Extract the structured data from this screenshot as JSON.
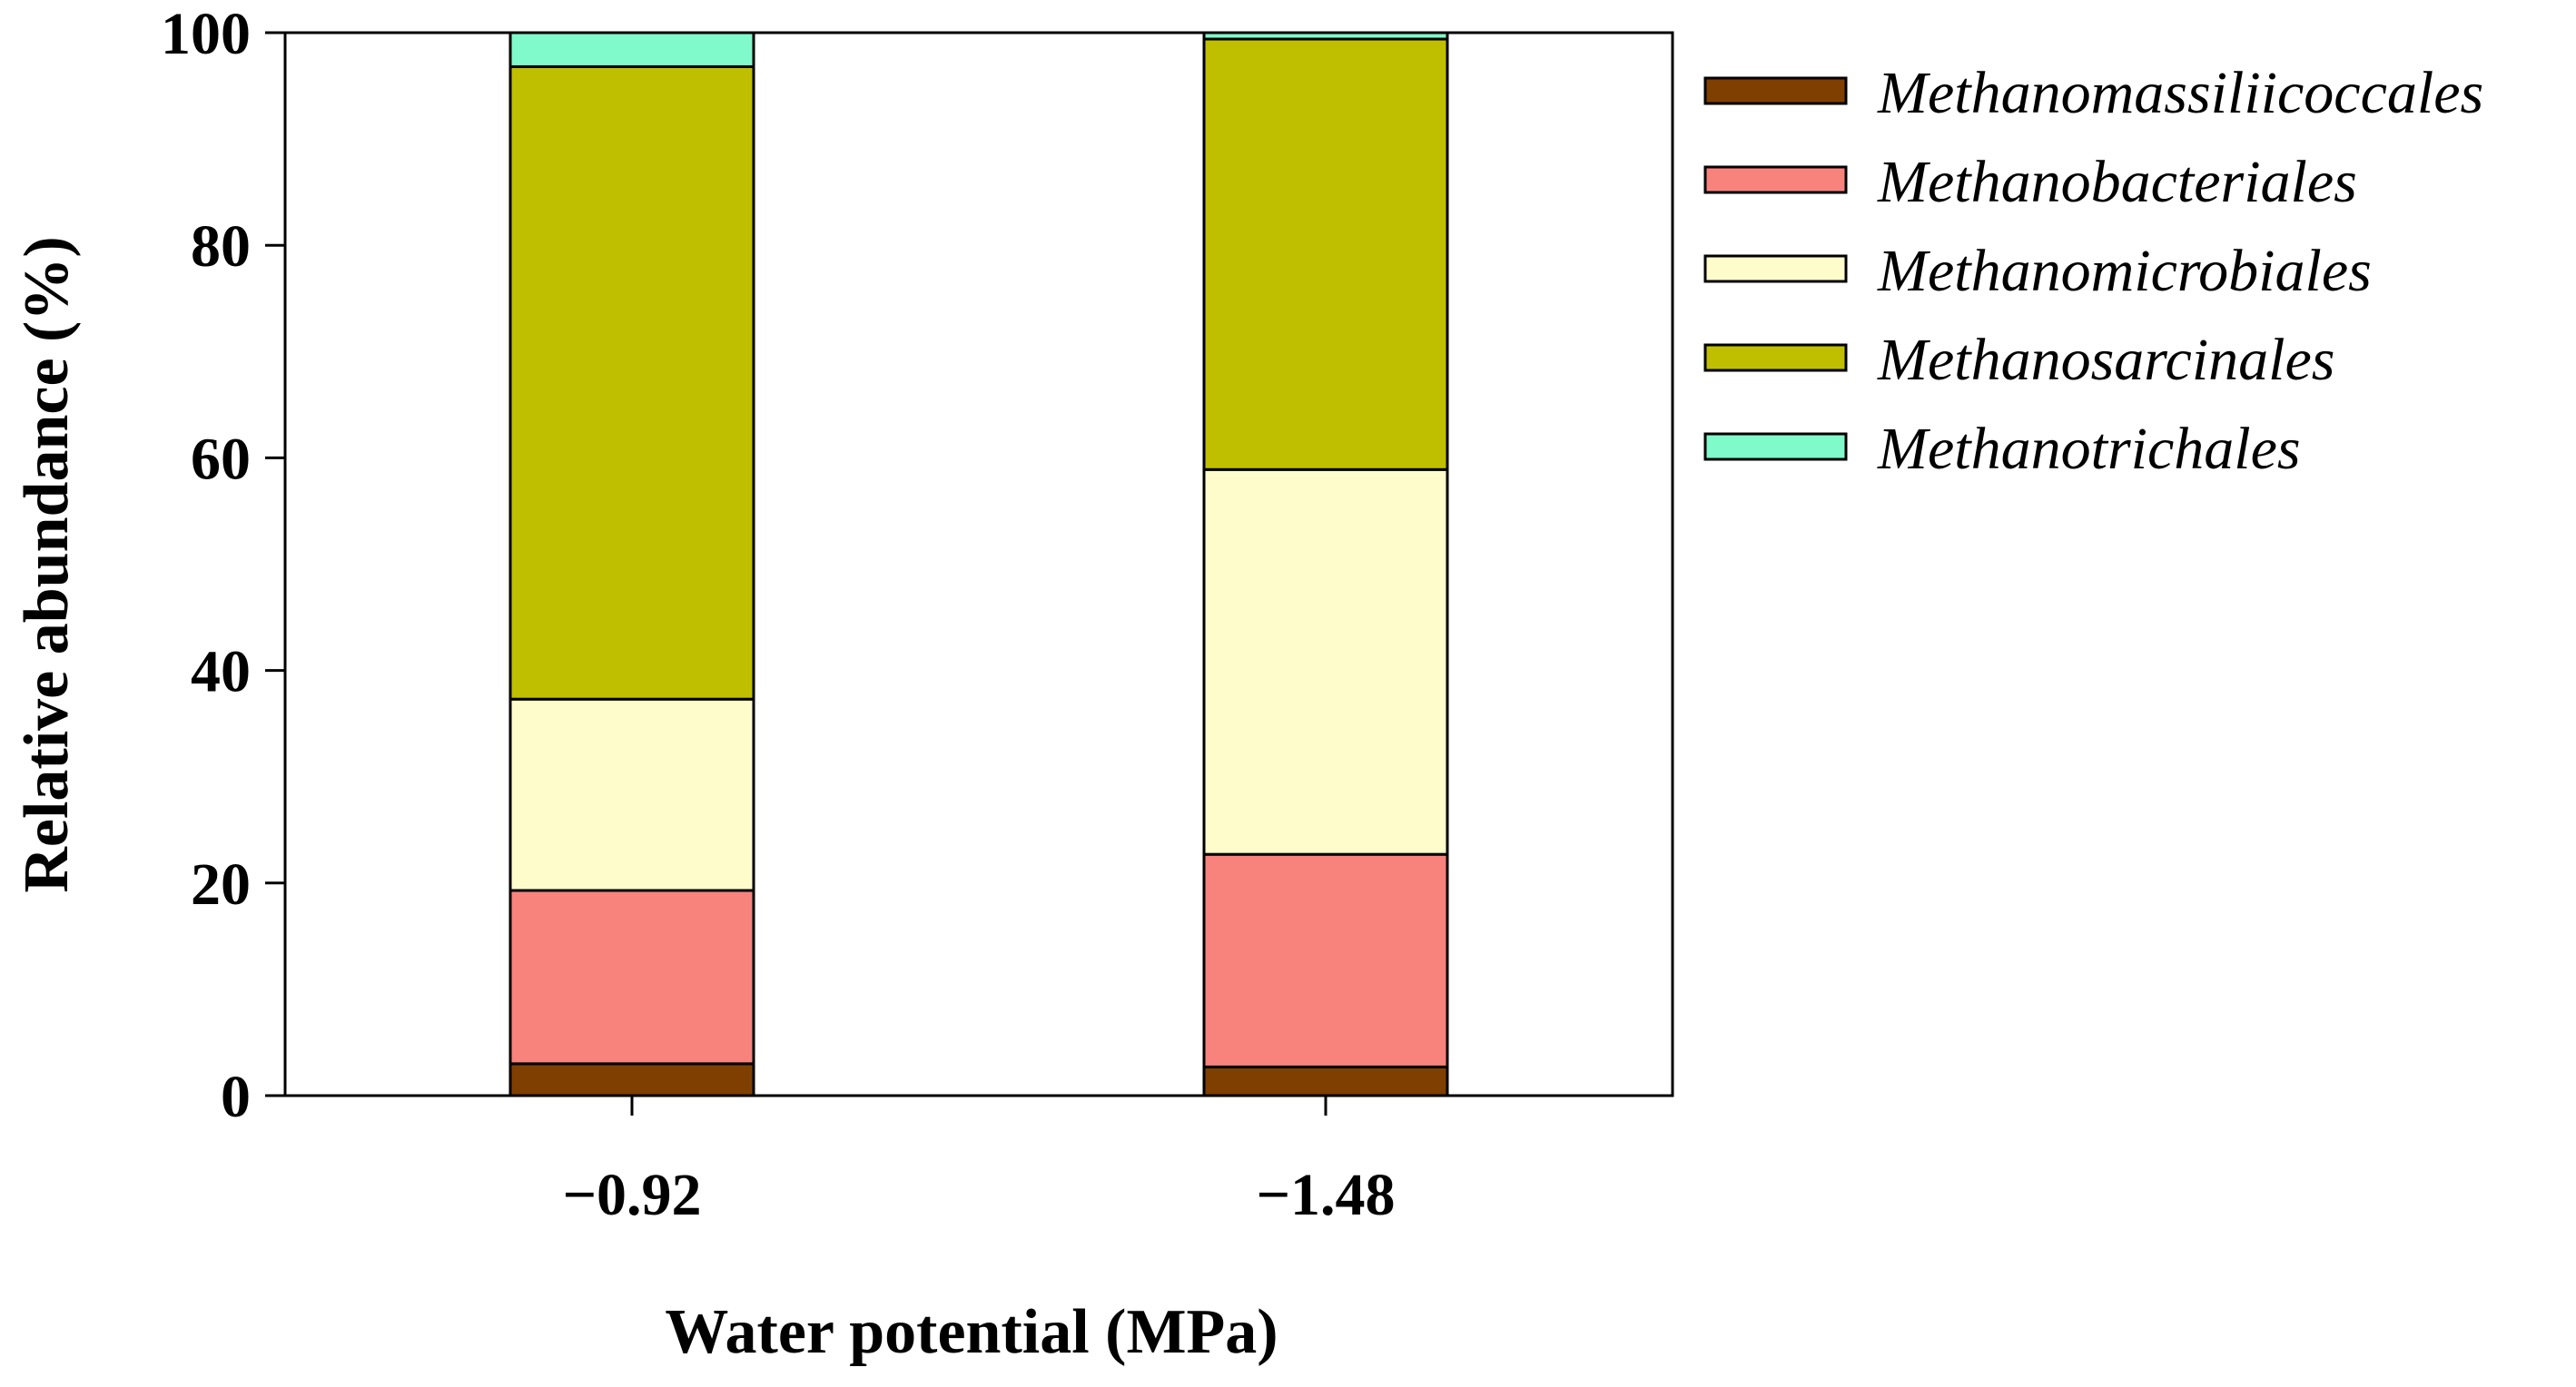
{
  "chart_data": {
    "type": "bar",
    "stacked": true,
    "title": "",
    "xlabel": "Water potential (MPa)",
    "ylabel": "Relative abundance (%)",
    "ylim": [
      0,
      100
    ],
    "yticks": [
      "0",
      "20",
      "40",
      "60",
      "80",
      "100"
    ],
    "categories": [
      "−0.92",
      "−1.48"
    ],
    "legend_position": "right",
    "series": [
      {
        "name": "Methanomassiliicoccales",
        "color": "#7f3f00",
        "values": [
          3.0,
          2.7
        ]
      },
      {
        "name": "Methanobacteriales",
        "color": "#f8837d",
        "values": [
          16.3,
          20.0
        ]
      },
      {
        "name": "Methanomicrobiales",
        "color": "#fffccc",
        "values": [
          18.0,
          36.2
        ]
      },
      {
        "name": "Methanosarcinales",
        "color": "#bfbf00",
        "values": [
          59.5,
          40.5
        ]
      },
      {
        "name": "Methanotrichales",
        "color": "#80f9cb",
        "values": [
          3.2,
          0.6
        ]
      }
    ]
  }
}
